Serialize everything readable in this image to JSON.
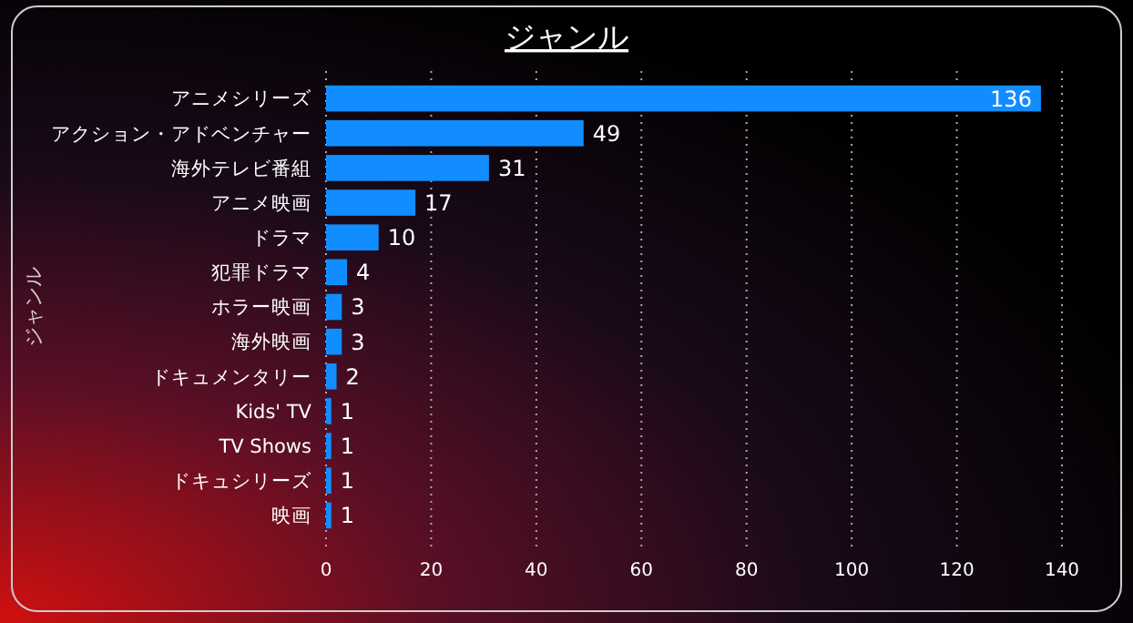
{
  "chart_data": {
    "type": "bar",
    "orientation": "horizontal",
    "title": "ジャンル",
    "ylabel": "ジャンル",
    "categories": [
      "アニメシリーズ",
      "アクション・アドベンチャー",
      "海外テレビ番組",
      "アニメ映画",
      "ドラマ",
      "犯罪ドラマ",
      "ホラー映画",
      "海外映画",
      "ドキュメンタリー",
      "Kids' TV",
      "TV Shows",
      "ドキュシリーズ",
      "映画"
    ],
    "values": [
      136,
      49,
      31,
      17,
      10,
      4,
      3,
      3,
      2,
      1,
      1,
      1,
      1
    ],
    "color": "#118dff",
    "xlim": [
      0,
      140
    ],
    "xticks": [
      0,
      20,
      40,
      60,
      80,
      100,
      120,
      140
    ],
    "grid": "x",
    "data_labels": true
  }
}
